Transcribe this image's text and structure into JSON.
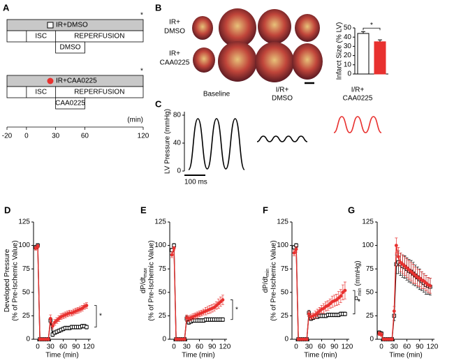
{
  "protocol": {
    "panel": "A",
    "groups": [
      {
        "label": "IR+DMSO",
        "drug": "DMSO",
        "asterisk": "*"
      },
      {
        "label": "IR+CAA0225",
        "drug": "CAA0225",
        "asterisk": "*"
      }
    ],
    "ischemia": "ISC",
    "reperfusion": "REPERFUSION",
    "time_ticks": [
      -20,
      0,
      30,
      60,
      120
    ],
    "time_unit": "(min)"
  },
  "infarct_photos": {
    "row_labels": [
      [
        "IR+",
        "DMSO"
      ],
      [
        "IR+",
        "CAA0225"
      ]
    ],
    "row_label_colors": [
      "#000000",
      "#e8312f"
    ]
  },
  "chart_data": [
    {
      "type": "bar",
      "panel": "B",
      "y_label": "Infarct Size (% LV)",
      "categories": [
        null,
        null
      ],
      "values": [
        44,
        35
      ],
      "errors": [
        2,
        2
      ],
      "colors": [
        "#ffffff",
        "#e8312f"
      ],
      "ylim": [
        0,
        50
      ],
      "yticks": [
        0,
        10,
        20,
        30,
        40,
        50
      ],
      "annotation": "*"
    },
    {
      "type": "trace",
      "panel": "C",
      "y_label": "LV Pressure (mmHg)",
      "ylim": [
        0,
        85
      ],
      "yticks": [
        0,
        40,
        80
      ],
      "scale_bar_label": "100 ms",
      "series": [
        {
          "name": [
            "Baseline"
          ],
          "label_color": "#000000",
          "color": "#000000",
          "values": [
            2,
            75,
            3,
            75,
            3,
            75,
            2
          ]
        },
        {
          "name": [
            "I/R+",
            "DMSO"
          ],
          "label_color": "#e8312f",
          "color": "#000000",
          "values": [
            42,
            50,
            42,
            50,
            42,
            50,
            42,
            50,
            42
          ]
        },
        {
          "name": [
            "I/R+",
            "CAA0225"
          ],
          "label_color": "#e8312f",
          "color": "#e8312f",
          "values": [
            55,
            78,
            55,
            78,
            55,
            78,
            55
          ]
        }
      ]
    },
    {
      "type": "line",
      "panel": "D",
      "y_label": "Developed Pressure",
      "y_label_2": "(% of Pre-Ischemic Value)",
      "x_label": "Time (min)",
      "xlim": [
        -10,
        125
      ],
      "xticks": [
        0,
        30,
        60,
        90,
        120
      ],
      "ylim": [
        0,
        125
      ],
      "yticks": [
        0,
        25,
        50,
        75,
        100,
        125
      ],
      "annotation": "*",
      "x": [
        -5,
        0,
        5,
        10,
        15,
        20,
        25,
        30,
        35,
        40,
        45,
        50,
        55,
        60,
        65,
        70,
        75,
        80,
        85,
        90,
        95,
        100,
        105,
        110,
        115
      ],
      "series": [
        {
          "name": "IR+DMSO",
          "color": "#000000",
          "marker": "square",
          "values": [
            98,
            100,
            0,
            0,
            0,
            0,
            0,
            20,
            5,
            7,
            8,
            9,
            10,
            11,
            12,
            12,
            12,
            13,
            13,
            13,
            13,
            13,
            14,
            14,
            13
          ],
          "errors": [
            2,
            2,
            0,
            0,
            0,
            0,
            0,
            3,
            2,
            2,
            2,
            2,
            2,
            2,
            2,
            2,
            2,
            2,
            2,
            2,
            2,
            2,
            2,
            2,
            2
          ]
        },
        {
          "name": "IR+CAA0225",
          "color": "#e8312f",
          "marker": "circle",
          "values": [
            97,
            99,
            0,
            0,
            0,
            0,
            0,
            22,
            14,
            18,
            20,
            22,
            24,
            25,
            26,
            27,
            28,
            28,
            29,
            30,
            31,
            32,
            33,
            35,
            36
          ],
          "errors": [
            2,
            2,
            0,
            0,
            0,
            0,
            0,
            4,
            3,
            3,
            3,
            3,
            3,
            3,
            3,
            3,
            3,
            3,
            3,
            3,
            3,
            3,
            3,
            3,
            3
          ]
        }
      ]
    },
    {
      "type": "line",
      "panel": "E",
      "y_label": "dP/dt",
      "y_label_sub": "max",
      "y_label_2": "(% of Pre-Ischemic Value)",
      "x_label": "Time (min)",
      "xlim": [
        -10,
        125
      ],
      "xticks": [
        0,
        30,
        60,
        90,
        120
      ],
      "ylim": [
        0,
        125
      ],
      "yticks": [
        0,
        25,
        50,
        75,
        100,
        125
      ],
      "annotation": "*",
      "x": [
        -5,
        0,
        5,
        10,
        15,
        20,
        25,
        30,
        35,
        40,
        45,
        50,
        55,
        60,
        65,
        70,
        75,
        80,
        85,
        90,
        95,
        100,
        105,
        110,
        115
      ],
      "series": [
        {
          "name": "IR+DMSO",
          "color": "#000000",
          "marker": "square",
          "values": [
            95,
            100,
            0,
            0,
            0,
            0,
            0,
            22,
            18,
            19,
            20,
            20,
            20,
            20,
            20,
            20,
            21,
            21,
            21,
            21,
            21,
            21,
            21,
            21,
            21
          ],
          "errors": [
            2,
            2,
            0,
            0,
            0,
            0,
            0,
            3,
            2,
            2,
            2,
            2,
            2,
            2,
            2,
            2,
            2,
            2,
            2,
            2,
            2,
            2,
            2,
            2,
            2
          ]
        },
        {
          "name": "IR+CAA0225",
          "color": "#e8312f",
          "marker": "circle",
          "values": [
            90,
            97,
            0,
            0,
            0,
            0,
            0,
            23,
            22,
            23,
            24,
            25,
            26,
            27,
            28,
            29,
            30,
            31,
            32,
            33,
            34,
            36,
            38,
            40,
            42
          ],
          "errors": [
            3,
            2,
            0,
            0,
            0,
            0,
            0,
            3,
            3,
            3,
            3,
            3,
            3,
            3,
            3,
            3,
            4,
            4,
            4,
            4,
            4,
            4,
            5,
            5,
            5
          ]
        }
      ]
    },
    {
      "type": "line",
      "panel": "F",
      "y_label": "dP/dt",
      "y_label_sub": "min",
      "y_label_2": "(% of Pre-Ischemic Value)",
      "x_label": "Time (min)",
      "xlim": [
        -10,
        125
      ],
      "xticks": [
        0,
        30,
        60,
        90,
        120
      ],
      "ylim": [
        0,
        125
      ],
      "yticks": [
        0,
        25,
        50,
        75,
        100,
        125
      ],
      "annotation": "*",
      "x": [
        -5,
        0,
        5,
        10,
        15,
        20,
        25,
        30,
        35,
        40,
        45,
        50,
        55,
        60,
        65,
        70,
        75,
        80,
        85,
        90,
        95,
        100,
        105,
        110,
        115
      ],
      "series": [
        {
          "name": "IR+DMSO",
          "color": "#000000",
          "marker": "square",
          "values": [
            98,
            100,
            0,
            0,
            0,
            0,
            0,
            28,
            22,
            23,
            24,
            24,
            25,
            25,
            25,
            25,
            26,
            26,
            26,
            26,
            26,
            26,
            27,
            27,
            27
          ],
          "errors": [
            2,
            2,
            0,
            0,
            0,
            0,
            0,
            3,
            2,
            2,
            2,
            2,
            2,
            2,
            2,
            2,
            2,
            2,
            2,
            2,
            2,
            2,
            2,
            2,
            2
          ]
        },
        {
          "name": "IR+CAA0225",
          "color": "#e8312f",
          "marker": "circle",
          "values": [
            92,
            96,
            0,
            0,
            0,
            0,
            0,
            27,
            24,
            25,
            26,
            28,
            30,
            32,
            33,
            35,
            36,
            38,
            40,
            41,
            42,
            44,
            46,
            50,
            52
          ],
          "errors": [
            3,
            3,
            0,
            0,
            0,
            0,
            0,
            3,
            3,
            3,
            4,
            4,
            4,
            4,
            5,
            5,
            5,
            5,
            6,
            6,
            6,
            7,
            7,
            8,
            9
          ]
        }
      ]
    },
    {
      "type": "line",
      "panel": "G",
      "y_label": "P",
      "y_label_sub": "min",
      "y_label_unit": "(mmHg)",
      "x_label": "Time (min)",
      "xlim": [
        -10,
        125
      ],
      "xticks": [
        0,
        30,
        60,
        90,
        120
      ],
      "ylim": [
        0,
        125
      ],
      "yticks": [
        0,
        25,
        50,
        75,
        100,
        125
      ],
      "x": [
        -5,
        0,
        5,
        10,
        15,
        20,
        25,
        30,
        35,
        40,
        45,
        50,
        55,
        60,
        65,
        70,
        75,
        80,
        85,
        90,
        95,
        100,
        105,
        110,
        115
      ],
      "series": [
        {
          "name": "IR+DMSO",
          "color": "#000000",
          "marker": "square",
          "values": [
            7,
            6,
            0,
            0,
            0,
            0,
            0,
            25,
            80,
            82,
            80,
            78,
            77,
            75,
            73,
            72,
            70,
            68,
            66,
            64,
            62,
            60,
            58,
            57,
            56
          ],
          "errors": [
            2,
            2,
            0,
            0,
            0,
            0,
            0,
            5,
            10,
            12,
            12,
            12,
            12,
            12,
            12,
            12,
            12,
            11,
            11,
            11,
            10,
            10,
            10,
            9,
            9
          ]
        },
        {
          "name": "IR+CAA0225",
          "color": "#e8312f",
          "marker": "circle",
          "values": [
            6,
            5,
            0,
            0,
            0,
            0,
            0,
            30,
            100,
            88,
            82,
            80,
            78,
            76,
            74,
            72,
            70,
            68,
            66,
            65,
            63,
            62,
            60,
            58,
            57
          ],
          "errors": [
            2,
            2,
            0,
            0,
            0,
            0,
            0,
            5,
            8,
            10,
            10,
            10,
            10,
            10,
            10,
            10,
            10,
            9,
            9,
            9,
            9,
            8,
            8,
            8,
            8
          ]
        }
      ]
    }
  ]
}
